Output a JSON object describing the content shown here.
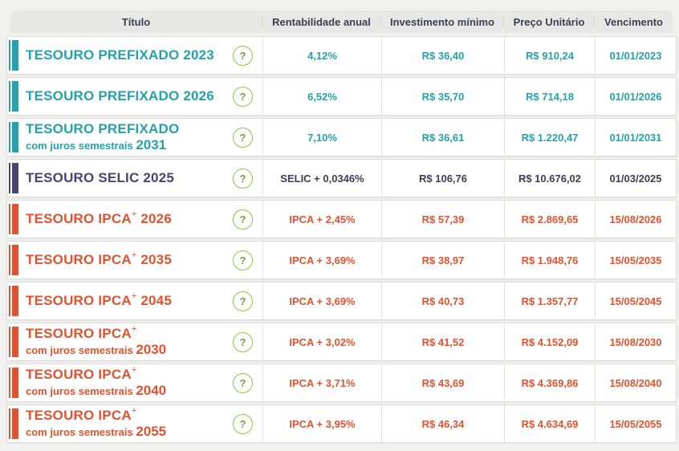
{
  "table": {
    "columns": {
      "titulo": "Título",
      "rate": "Rentabilidade anual",
      "min": "Investimento mínimo",
      "price": "Preço Unitário",
      "due": "Vencimento"
    },
    "help_glyph": "?",
    "rows": [
      {
        "name": "TESOURO PREFIXADO",
        "sup": "",
        "year1": "2023",
        "line2": "",
        "year2": "",
        "color": "#23a1ac",
        "value_color": "#23a1ac",
        "rate": "4,12%",
        "min": "R$ 36,40",
        "price": "R$ 910,24",
        "due": "01/01/2023"
      },
      {
        "name": "TESOURO PREFIXADO",
        "sup": "",
        "year1": "2026",
        "line2": "",
        "year2": "",
        "color": "#23a1ac",
        "value_color": "#23a1ac",
        "rate": "6,52%",
        "min": "R$ 35,70",
        "price": "R$ 714,18",
        "due": "01/01/2026"
      },
      {
        "name": "TESOURO PREFIXADO",
        "sup": "",
        "year1": "",
        "line2": "com juros semestrais",
        "year2": "2031",
        "color": "#23a1ac",
        "value_color": "#23a1ac",
        "rate": "7,10%",
        "min": "R$ 36,61",
        "price": "R$ 1.220,47",
        "due": "01/01/2031"
      },
      {
        "name": "TESOURO SELIC",
        "sup": "",
        "year1": "2025",
        "line2": "",
        "year2": "",
        "color": "#4a4272",
        "value_color": "#3d3d52",
        "rate": "SELIC + 0,0346%",
        "min": "R$ 106,76",
        "price": "R$ 10.676,02",
        "due": "01/03/2025"
      },
      {
        "name": "TESOURO IPCA",
        "sup": "+",
        "year1": "2026",
        "line2": "",
        "year2": "",
        "color": "#e2522e",
        "value_color": "#e2522e",
        "rate": "IPCA + 2,45%",
        "min": "R$ 57,39",
        "price": "R$ 2.869,65",
        "due": "15/08/2026"
      },
      {
        "name": "TESOURO IPCA",
        "sup": "+",
        "year1": "2035",
        "line2": "",
        "year2": "",
        "color": "#e2522e",
        "value_color": "#e2522e",
        "rate": "IPCA + 3,69%",
        "min": "R$ 38,97",
        "price": "R$ 1.948,76",
        "due": "15/05/2035"
      },
      {
        "name": "TESOURO IPCA",
        "sup": "+",
        "year1": "2045",
        "line2": "",
        "year2": "",
        "color": "#e2522e",
        "value_color": "#e2522e",
        "rate": "IPCA + 3,69%",
        "min": "R$ 40,73",
        "price": "R$ 1.357,77",
        "due": "15/05/2045"
      },
      {
        "name": "TESOURO IPCA",
        "sup": "+",
        "year1": "",
        "line2": "com juros semestrais",
        "year2": "2030",
        "color": "#e2522e",
        "value_color": "#e2522e",
        "rate": "IPCA + 3,02%",
        "min": "R$ 41,52",
        "price": "R$ 4.152,09",
        "due": "15/08/2030"
      },
      {
        "name": "TESOURO IPCA",
        "sup": "+",
        "year1": "",
        "line2": "com juros semestrais",
        "year2": "2040",
        "color": "#e2522e",
        "value_color": "#e2522e",
        "rate": "IPCA + 3,71%",
        "min": "R$ 43,69",
        "price": "R$ 4.369,86",
        "due": "15/08/2040"
      },
      {
        "name": "TESOURO IPCA",
        "sup": "+",
        "year1": "",
        "line2": "com juros semestrais",
        "year2": "2055",
        "color": "#e2522e",
        "value_color": "#e2522e",
        "rate": "IPCA + 3,95%",
        "min": "R$ 46,34",
        "price": "R$ 4.634,69",
        "due": "15/05/2055"
      }
    ],
    "colors": {
      "page_background": "#f1f1ef",
      "header_background": "#e8e8e6",
      "header_text": "#3e3e52",
      "prefixado_teal": "#23a1ac",
      "selic_purple": "#4a4272",
      "ipca_orange": "#e2522e",
      "help_green_border": "#8cc63e"
    }
  }
}
